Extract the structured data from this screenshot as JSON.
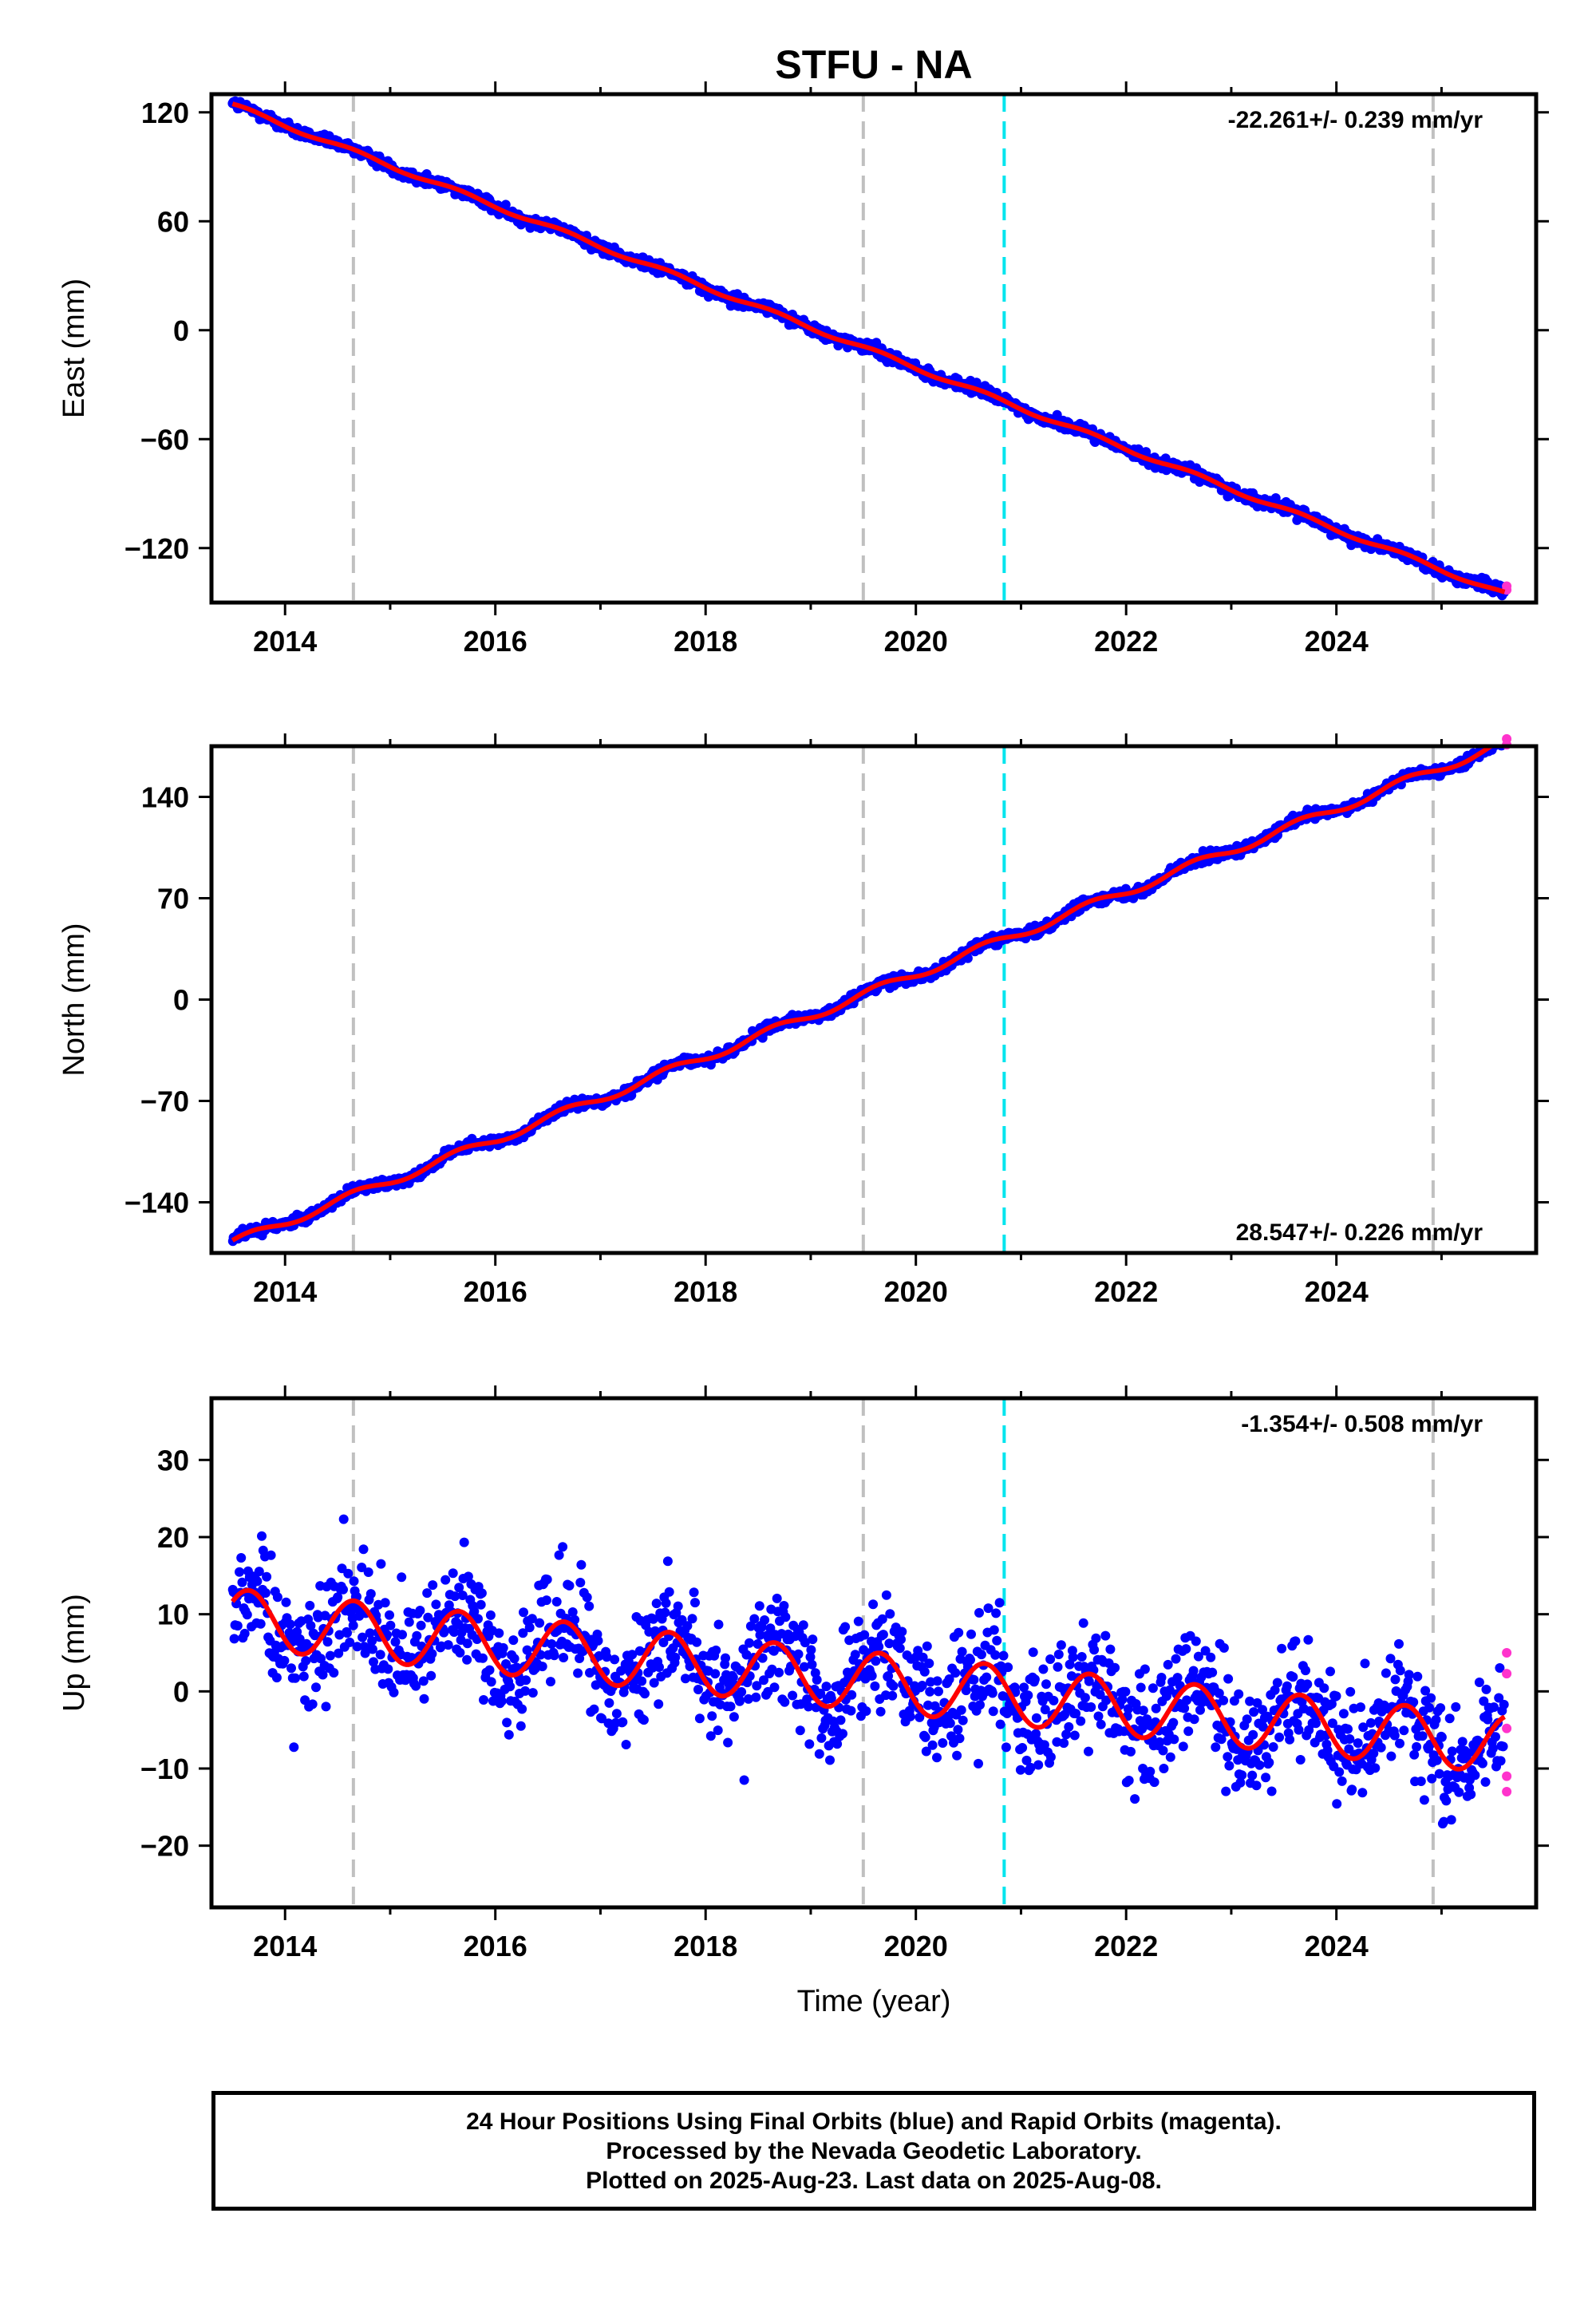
{
  "chart_data": {
    "type": "scatter",
    "title": "STFU - NA",
    "xlabel": "Time (year)",
    "xlim": [
      2013.3,
      2025.9
    ],
    "xticks": [
      "2014",
      "2016",
      "2018",
      "2020",
      "2022",
      "2024"
    ],
    "xtick_values": [
      2014,
      2016,
      2018,
      2020,
      2022,
      2024
    ],
    "vlines_gray": [
      2014.65,
      2019.5,
      2024.92
    ],
    "vlines_cyan": [
      2020.84
    ],
    "data_start": 2013.5,
    "data_end": 2025.6,
    "colors": {
      "final_orbits": "#0000ff",
      "rapid_orbits": "#ff33cc",
      "model_fit": "#ff0000",
      "equipment_change": "#c0c0c0",
      "earthquake": "#00e5ee"
    },
    "panels": [
      {
        "ylabel": "East (mm)",
        "ylim": [
          -150,
          130
        ],
        "yticks": [
          "120",
          "60",
          "0",
          "−60",
          "−120"
        ],
        "ytick_values": [
          120,
          60,
          0,
          -60,
          -120
        ],
        "rate": "-22.261+/- 0.239 mm/yr",
        "rate_position": "top-right",
        "trend": {
          "value_at_2013_5": 124,
          "slope": -22.26
        },
        "seasonal_amplitude": 1.2,
        "scatter_sd": 1.6,
        "rapid_points": [
          -143,
          -141
        ]
      },
      {
        "ylabel": "North (mm)",
        "ylim": [
          -175,
          175
        ],
        "yticks": [
          "140",
          "70",
          "0",
          "−70",
          "−140"
        ],
        "ytick_values": [
          140,
          70,
          0,
          -70,
          -140
        ],
        "rate": "28.547+/- 0.226 mm/yr",
        "rate_position": "bottom-right",
        "trend": {
          "value_at_2013_5": -168,
          "slope": 28.55
        },
        "seasonal_amplitude": 3.0,
        "scatter_sd": 1.8,
        "rapid_points": [
          176,
          180
        ]
      },
      {
        "ylabel": "Up (mm)",
        "ylim": [
          -28,
          38
        ],
        "yticks": [
          "30",
          "20",
          "10",
          "0",
          "−10",
          "−20"
        ],
        "ytick_values": [
          30,
          20,
          10,
          0,
          -10,
          -20
        ],
        "rate": "-1.354+/- 0.508 mm/yr",
        "rate_position": "top-right",
        "trend": {
          "value_at_2013_5": 9.5,
          "slope": -1.354
        },
        "seasonal_amplitude": 3.8,
        "scatter_sd": 3.6,
        "rapid_points": [
          5,
          2.3,
          -4.8,
          -11,
          -13
        ]
      }
    ]
  },
  "footer": {
    "line1": "24 Hour Positions Using Final Orbits (blue) and Rapid Orbits (magenta).",
    "line2": "Processed by the Nevada Geodetic Laboratory.",
    "line3": "Plotted on 2025-Aug-23. Last data on 2025-Aug-08."
  }
}
